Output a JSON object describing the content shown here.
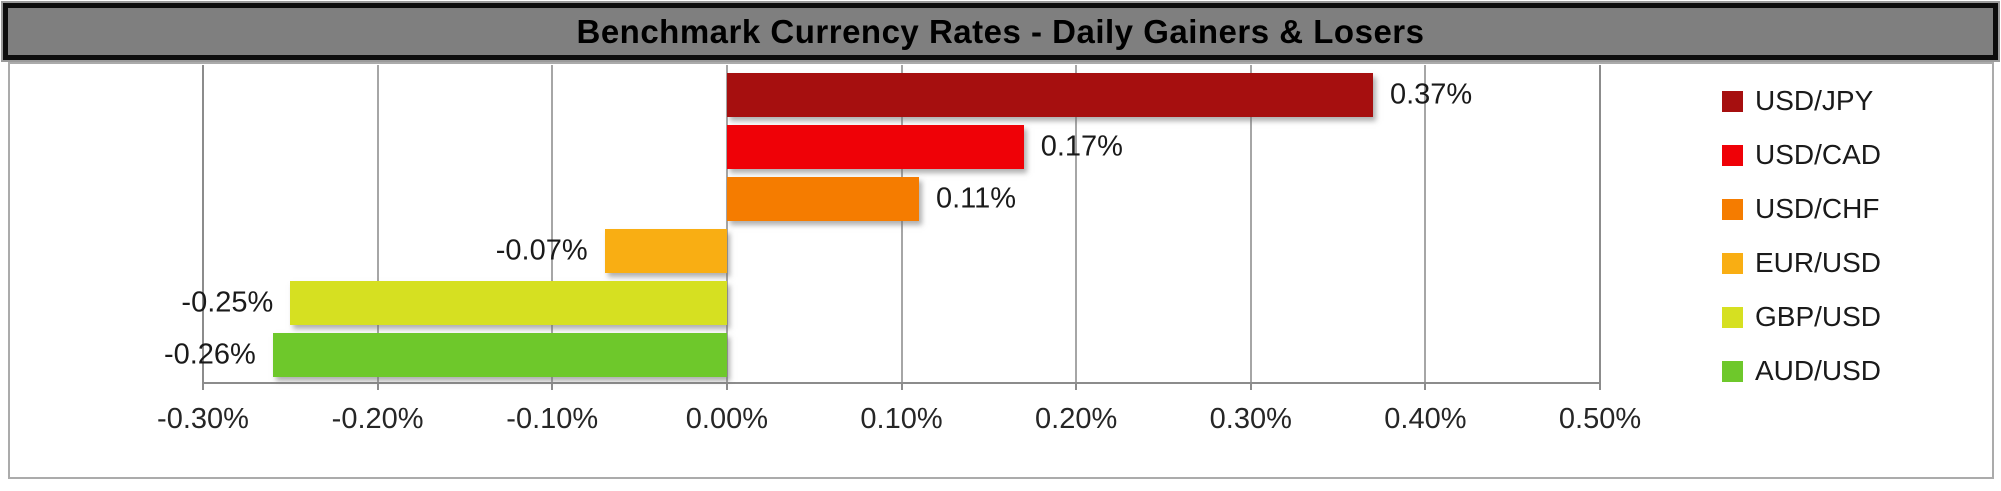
{
  "title_bar": {
    "title": "Benchmark Currency Rates - Daily Gainers & Losers"
  },
  "chart_data": {
    "type": "bar",
    "orientation": "horizontal",
    "title": "Benchmark Currency Rates - Daily Gainers & Losers",
    "categories": [
      "USD/JPY",
      "USD/CAD",
      "USD/CHF",
      "EUR/USD",
      "GBP/USD",
      "AUD/USD"
    ],
    "values": [
      0.37,
      0.17,
      0.11,
      -0.07,
      -0.25,
      -0.26
    ],
    "data_labels": [
      "0.37%",
      "0.17%",
      "0.11%",
      "-0.07%",
      "-0.25%",
      "-0.26%"
    ],
    "bar_colors": [
      "#A60F0F",
      "#EF0107",
      "#F57C00",
      "#F9AE13",
      "#D6E021",
      "#6EC82B"
    ],
    "legend": [
      {
        "label": "USD/JPY",
        "color": "#A60F0F"
      },
      {
        "label": "USD/CAD",
        "color": "#EF0107"
      },
      {
        "label": "USD/CHF",
        "color": "#F57C00"
      },
      {
        "label": "EUR/USD",
        "color": "#F9AE13"
      },
      {
        "label": "GBP/USD",
        "color": "#D6E021"
      },
      {
        "label": "AUD/USD",
        "color": "#6EC82B"
      }
    ],
    "legend_position": "right",
    "xlabel": "",
    "ylabel": "",
    "xlim": [
      -0.3,
      0.5
    ],
    "x_tick_values": [
      -0.3,
      -0.2,
      -0.1,
      0.0,
      0.1,
      0.2,
      0.3,
      0.4,
      0.5
    ],
    "x_tick_labels": [
      "-0.30%",
      "-0.20%",
      "-0.10%",
      "0.00%",
      "0.10%",
      "0.20%",
      "0.30%",
      "0.40%",
      "0.50%"
    ],
    "grid": "vertical",
    "grid_color": "#A6A6A6"
  }
}
